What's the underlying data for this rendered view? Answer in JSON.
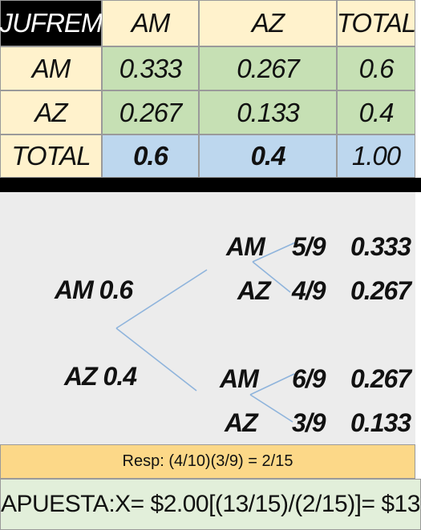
{
  "table": {
    "header": [
      "JUFREM",
      "AM",
      "AZ",
      "TOTAL"
    ],
    "rows": [
      [
        "AM",
        "0.333",
        "0.267",
        "0.6"
      ],
      [
        "AZ",
        "0.267",
        "0.133",
        "0.4"
      ],
      [
        "TOTAL",
        "0.6",
        "0.4",
        "1.00"
      ]
    ]
  },
  "tree": {
    "branches": [
      {
        "label": "AM",
        "prob": "0.6",
        "children": [
          {
            "label": "AM",
            "frac": "5/9",
            "prob": "0.333"
          },
          {
            "label": "AZ",
            "frac": "4/9",
            "prob": "0.267"
          }
        ]
      },
      {
        "label": "AZ",
        "prob": "0.4",
        "children": [
          {
            "label": "AM",
            "frac": "6/9",
            "prob": "0.267"
          },
          {
            "label": "AZ",
            "frac": "3/9",
            "prob": "0.133"
          }
        ]
      }
    ]
  },
  "footer": {
    "resp": "Resp: (4/10)(3/9) = 2/15",
    "apuesta": "APUESTA:X= $2.00[(13/15)/(2/15)]= $13"
  }
}
